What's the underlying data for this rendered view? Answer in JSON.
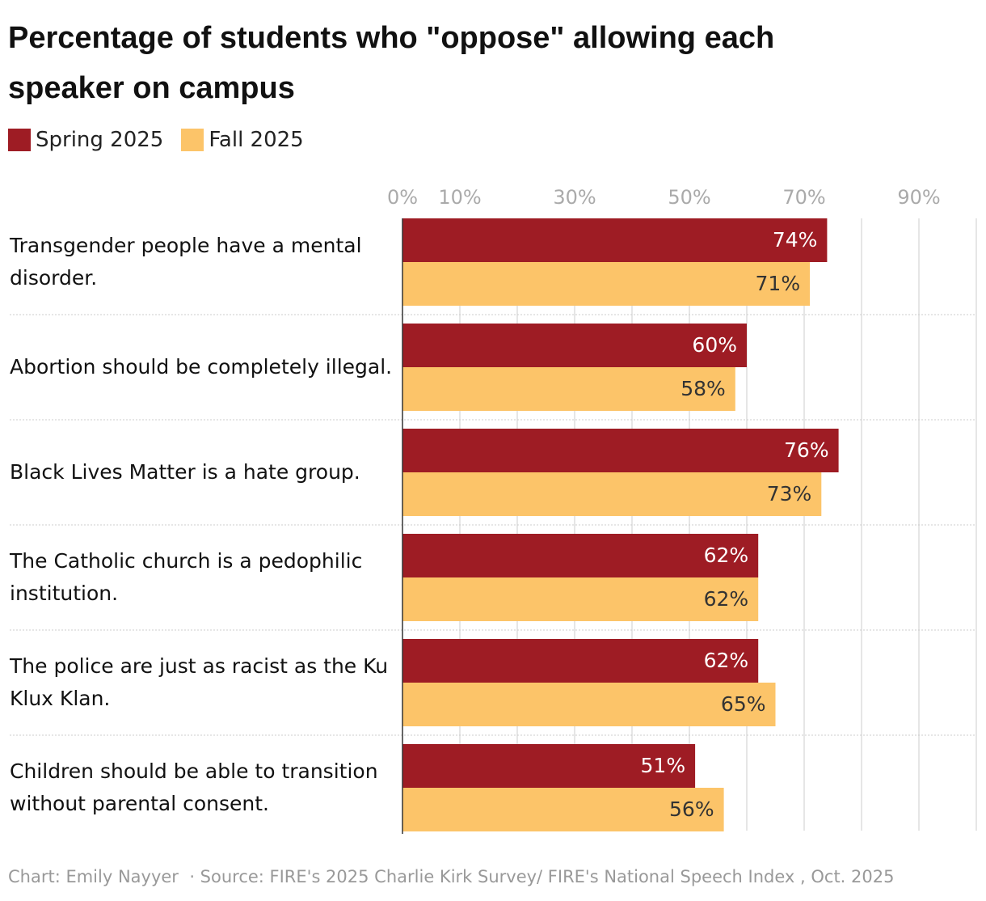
{
  "chart_data": {
    "type": "bar",
    "orientation": "horizontal",
    "title": "Percentage of students who \"oppose\" allowing each speaker on campus",
    "categories": [
      "Transgender people have a mental disorder.",
      "Abortion should be completely illegal.",
      "Black Lives Matter is a hate group.",
      "The Catholic church is a pedophilic institution.",
      "The police are just as racist as the Ku Klux Klan.",
      "Children should be able to transition without parental consent."
    ],
    "series": [
      {
        "name": "Spring 2025",
        "color": "#9e1c24",
        "label_color": "#ffffff",
        "values": [
          74,
          60,
          76,
          62,
          62,
          51
        ],
        "value_labels": [
          "74%",
          "60%",
          "76%",
          "62%",
          "62%",
          "51%"
        ]
      },
      {
        "name": "Fall 2025",
        "color": "#fcc469",
        "label_color": "#333333",
        "values": [
          71,
          58,
          73,
          62,
          65,
          56
        ],
        "value_labels": [
          "71%",
          "58%",
          "73%",
          "62%",
          "65%",
          "56%"
        ]
      }
    ],
    "xlim": [
      0,
      100
    ],
    "xticks": [
      {
        "value": 0,
        "label": "0%"
      },
      {
        "value": 10,
        "label": "10%"
      },
      20,
      {
        "value": 30,
        "label": "30%"
      },
      40,
      {
        "value": 50,
        "label": "50%"
      },
      60,
      {
        "value": 70,
        "label": "70%"
      },
      80,
      {
        "value": 90,
        "label": "90%"
      },
      100
    ],
    "grid": true,
    "credit": "Chart: Emily Nayyer",
    "source": "· Source: FIRE's 2025 Charlie Kirk Survey/ FIRE's National Speech Index , Oct. 2025"
  }
}
